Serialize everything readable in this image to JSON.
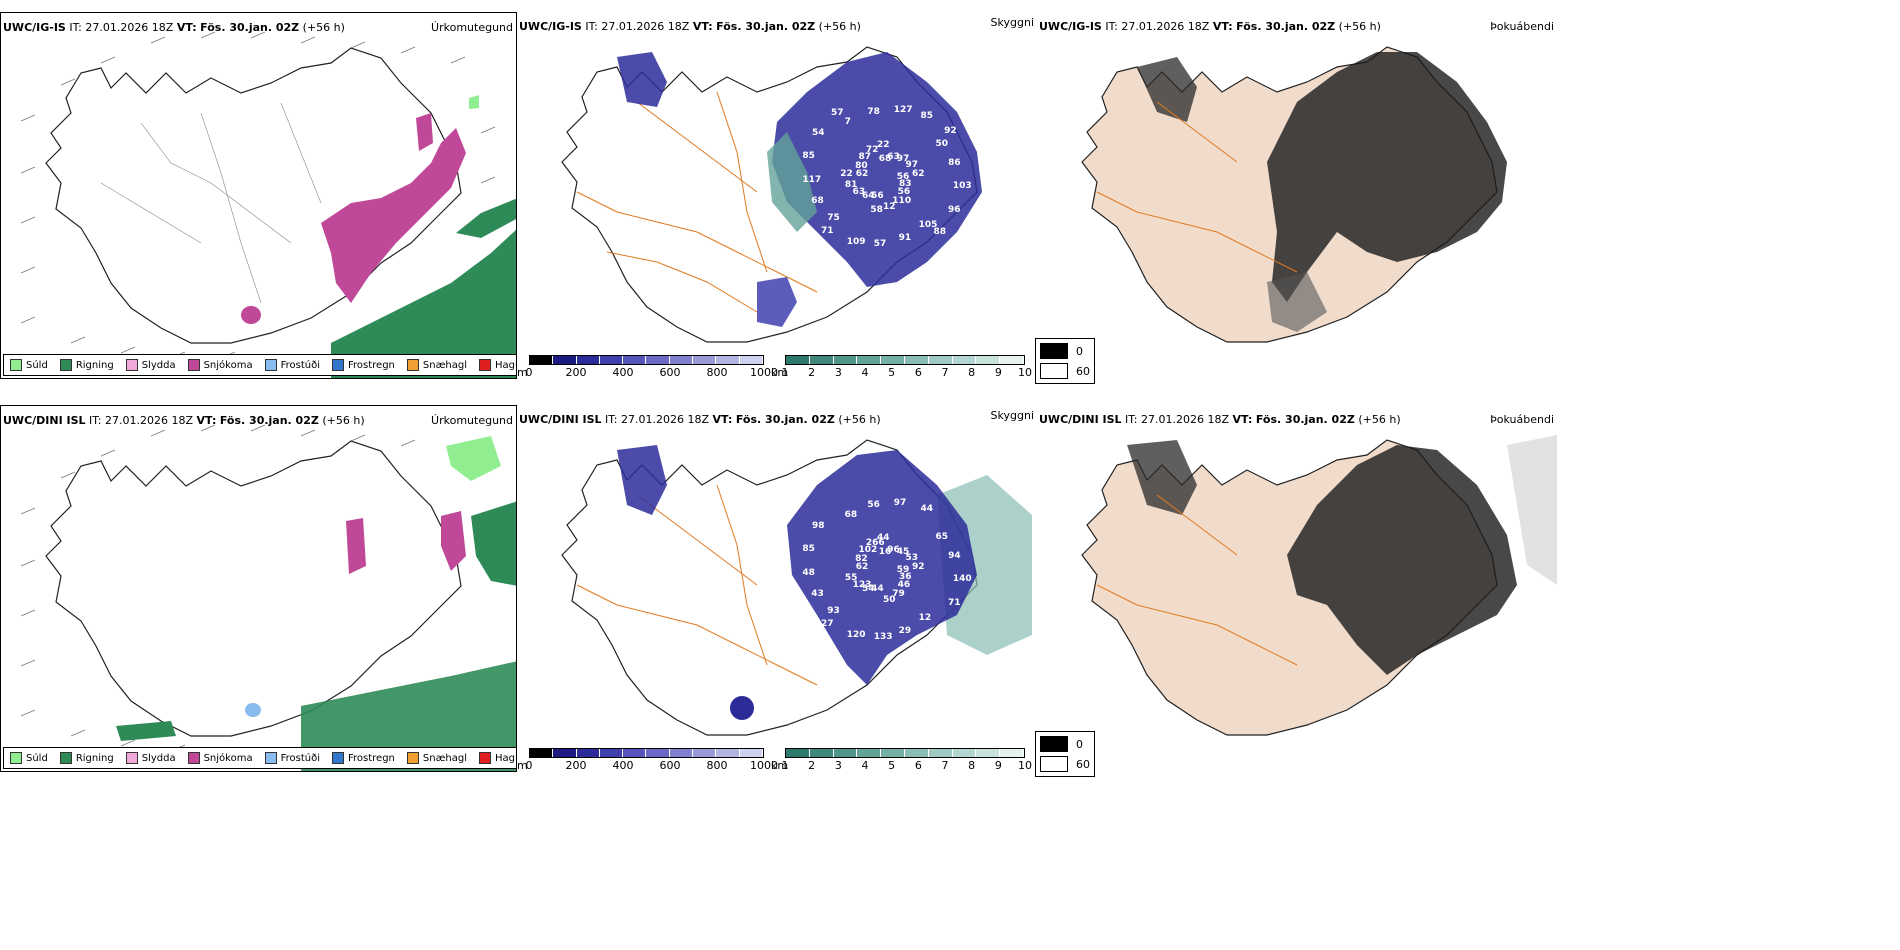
{
  "panels": {
    "p1": {
      "model": "UWC/IG-IS",
      "it_label": "IT:",
      "it_value": "27.01.2026 18Z",
      "vt_label": "VT:",
      "vt_value": "Fös. 30.jan. 02Z",
      "lead": "(+56 h)",
      "field": "Úrkomutegund"
    },
    "p2": {
      "model": "UWC/IG-IS",
      "it_label": "IT:",
      "it_value": "27.01.2026 18Z",
      "vt_label": "VT:",
      "vt_value": "Fös. 30.jan. 02Z",
      "lead": "(+56 h)",
      "field": "Skyggni"
    },
    "p3": {
      "model": "UWC/IG-IS",
      "it_label": "IT:",
      "it_value": "27.01.2026 18Z",
      "vt_label": "VT:",
      "vt_value": "Fös. 30.jan. 02Z",
      "lead": "(+56 h)",
      "field": "Þokuábendi"
    },
    "p4": {
      "model": "UWC/DINI ISL",
      "it_label": "IT:",
      "it_value": "27.01.2026 18Z",
      "vt_label": "VT:",
      "vt_value": "Fös. 30.jan. 02Z",
      "lead": "(+56 h)",
      "field": "Úrkomutegund"
    },
    "p5": {
      "model": "UWC/DINI ISL",
      "it_label": "IT:",
      "it_value": "27.01.2026 18Z",
      "vt_label": "VT:",
      "vt_value": "Fös. 30.jan. 02Z",
      "lead": "(+56 h)",
      "field": "Skyggni"
    },
    "p6": {
      "model": "UWC/DINI ISL",
      "it_label": "IT:",
      "it_value": "27.01.2026 18Z",
      "vt_label": "VT:",
      "vt_value": "Fös. 30.jan. 02Z",
      "lead": "(+56 h)",
      "field": "Þokuábendi"
    }
  },
  "precip_legend": [
    {
      "label": "Súld",
      "color": "#90ee90"
    },
    {
      "label": "Rigning",
      "color": "#2e8b57"
    },
    {
      "label": "Slydda",
      "color": "#f0a8d8"
    },
    {
      "label": "Snjókoma",
      "color": "#c04898"
    },
    {
      "label": "Frostúði",
      "color": "#88bbee"
    },
    {
      "label": "Frostregn",
      "color": "#3377cc"
    },
    {
      "label": "Snæhagl",
      "color": "#f0a030"
    },
    {
      "label": "Haglél",
      "color": "#e02020"
    }
  ],
  "elevation_bar": {
    "unit": "m",
    "ticks": [
      "0",
      "200",
      "400",
      "600",
      "800",
      "1000"
    ],
    "colors": [
      "#000000",
      "#1a1a80",
      "#2b2b9a",
      "#3f3fae",
      "#5555bb",
      "#6a6ac6",
      "#8080d0",
      "#9a9ad8",
      "#b4b4e2",
      "#cfcfee"
    ]
  },
  "visibility_bar": {
    "unit": "km",
    "ticks": [
      "1",
      "2",
      "3",
      "4",
      "5",
      "6",
      "7",
      "8",
      "9",
      "10"
    ],
    "colors": [
      "#2f7a6e",
      "#3f877c",
      "#50958a",
      "#62a398",
      "#75b0a6",
      "#89bdb4",
      "#9ecac2",
      "#b3d7d0",
      "#c8e3de",
      "#e6f2ef"
    ]
  },
  "fog_legend": {
    "high": "0",
    "low": "60"
  },
  "peak_labels": {
    "p2": [
      "56",
      "75",
      "68",
      "105",
      "62",
      "50",
      "56",
      "7",
      "83",
      "68",
      "63",
      "91",
      "80",
      "86",
      "64",
      "78",
      "56",
      "117",
      "97",
      "57",
      "87",
      "103",
      "63",
      "127",
      "110",
      "85",
      "97",
      "109",
      "72",
      "96",
      "81",
      "85",
      "12",
      "54",
      "62",
      "71",
      "22",
      "88",
      "22",
      "92",
      "58",
      "57"
    ],
    "p5": [
      "59",
      "93",
      "16",
      "12",
      "62",
      "65",
      "44",
      "68",
      "36",
      "43",
      "96",
      "29",
      "82",
      "94",
      "54",
      "56",
      "46",
      "48",
      "45",
      "133",
      "102",
      "140",
      "123",
      "97",
      "79",
      "85",
      "53",
      "120",
      "266",
      "71",
      "55",
      "44",
      "50",
      "98",
      "92",
      "27",
      "44"
    ]
  }
}
